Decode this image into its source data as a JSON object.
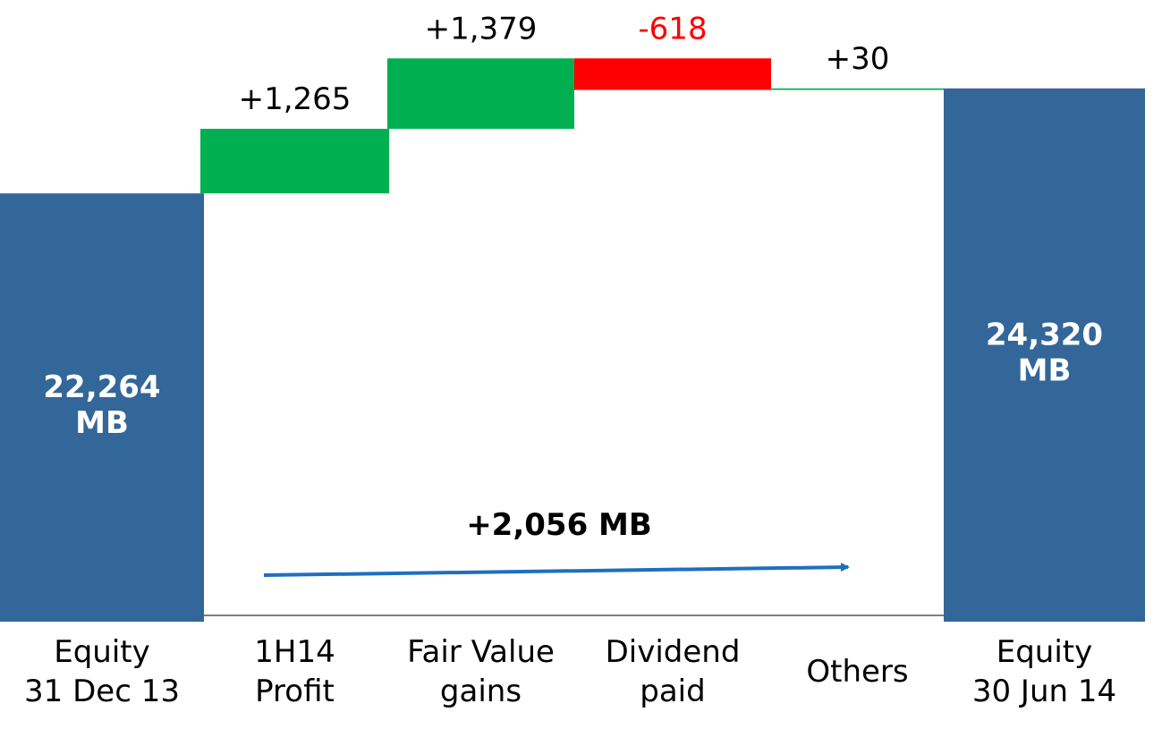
{
  "chart_data": {
    "type": "waterfall",
    "categories": [
      "Equity\n31 Dec 13",
      "1H14\nProfit",
      "Fair Value\ngains",
      "Dividend\npaid",
      "Others",
      "Equity\n30 Jun 14"
    ],
    "values": [
      22264,
      1265,
      1379,
      -618,
      30,
      24320
    ],
    "value_labels": [
      "22,264\nMB",
      "+1,265",
      "+1,379",
      "-618",
      "+30",
      "24,320\nMB"
    ],
    "colors": {
      "total": "#336699",
      "increase": "#00b050",
      "decrease": "#ff0000"
    },
    "ylim": [
      14000,
      25000
    ],
    "annotation": "+2,056 MB"
  }
}
